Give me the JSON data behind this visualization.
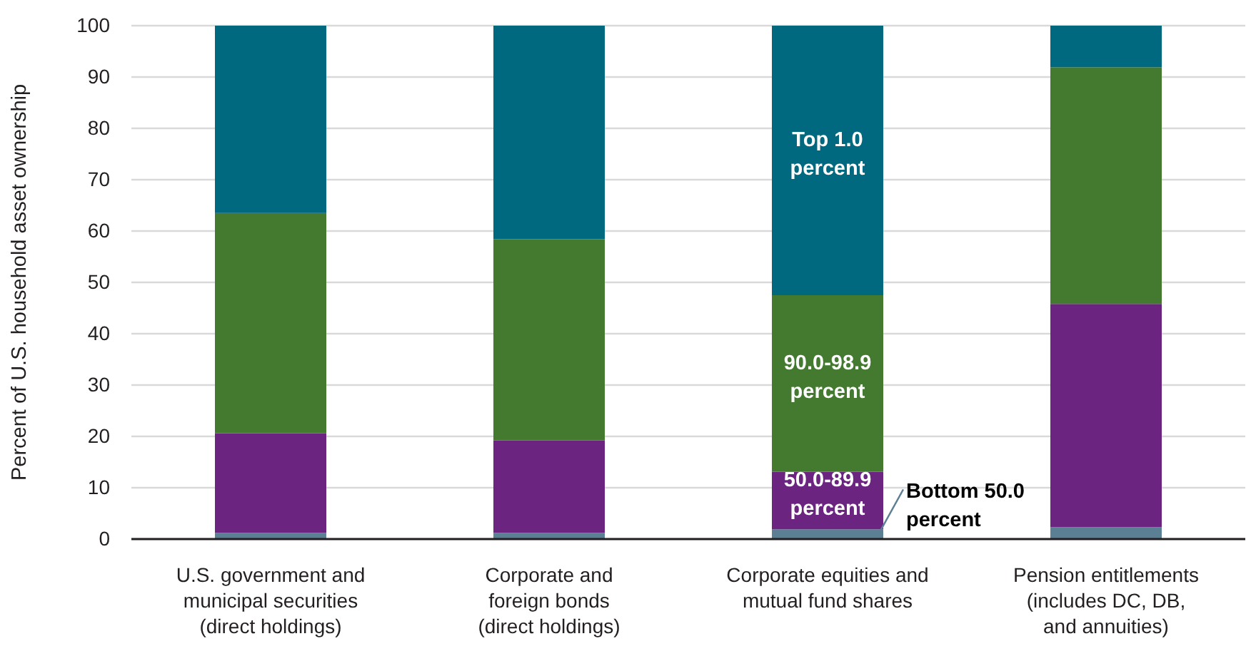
{
  "chart_data": {
    "type": "bar",
    "stacked": true,
    "ylabel": "Percent of U.S. household asset ownership",
    "categories": [
      "U.S. government and\nmunicipal securities\n(direct holdings)",
      "Corporate and\nforeign bonds\n(direct holdings)",
      "Corporate equities and\nmutual fund shares",
      "Pension entitlements\n(includes DC, DB,\nand annuities)"
    ],
    "series": [
      {
        "name": "Bottom 50.0 percent",
        "color": "#5b7f93",
        "values": [
          1.2,
          1.2,
          1.9,
          2.3
        ]
      },
      {
        "name": "50.0-89.9 percent",
        "color": "#6b2580",
        "values": [
          19.4,
          18.0,
          11.2,
          43.5
        ]
      },
      {
        "name": "90.0-98.9 percent",
        "color": "#437a2f",
        "values": [
          42.9,
          39.2,
          34.4,
          46.1
        ]
      },
      {
        "name": "Top 1.0 percent",
        "color": "#006980",
        "values": [
          36.5,
          41.6,
          52.5,
          8.1
        ]
      }
    ],
    "ylim": [
      0,
      100
    ],
    "yticks": [
      0,
      10,
      20,
      30,
      40,
      50,
      60,
      70,
      80,
      90,
      100
    ],
    "grid": "y"
  }
}
